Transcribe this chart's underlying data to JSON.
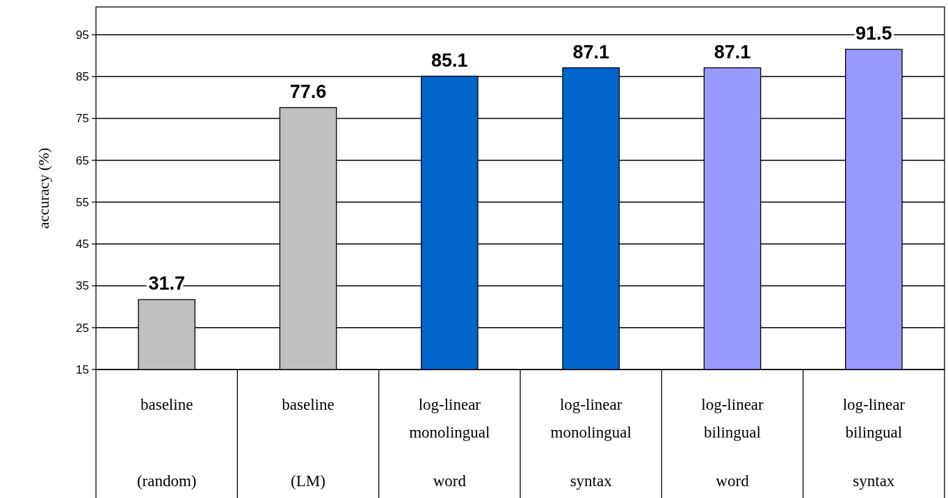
{
  "chart_data": {
    "type": "bar",
    "ylabel": "accuracy (%)",
    "categories": [
      "baseline\n\n(random)",
      "baseline\n\n(LM)",
      "log-linear\nmonolingual\nword",
      "log-linear\nmonolingual\nsyntax",
      "log-linear\nbilingual\nword",
      "log-linear\nbilingual\nsyntax"
    ],
    "values": [
      31.7,
      77.6,
      85.1,
      87.1,
      87.1,
      91.5
    ],
    "colors": [
      "#c0c0c0",
      "#c0c0c0",
      "#0066cc",
      "#0066cc",
      "#9999ff",
      "#9999ff"
    ],
    "ylim": [
      15,
      95
    ],
    "yticks": [
      15,
      25,
      35,
      45,
      55,
      65,
      75,
      85,
      95
    ],
    "grid": "y",
    "data_labels": true
  }
}
